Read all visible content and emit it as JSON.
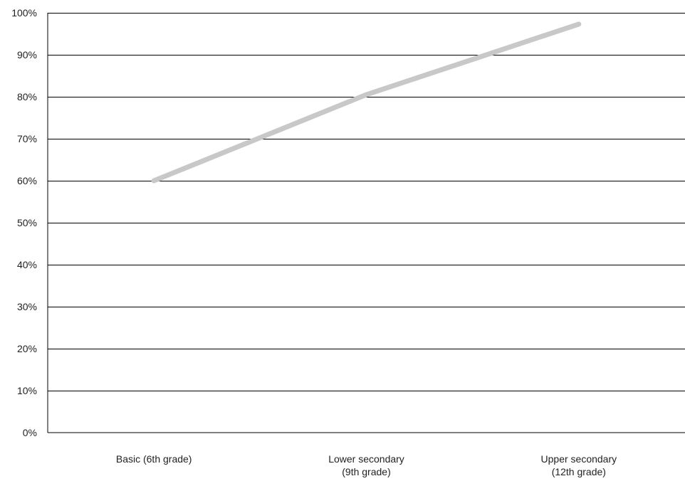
{
  "chart_data": {
    "type": "line",
    "categories": [
      [
        "Basic (6th grade)"
      ],
      [
        "Lower secondary",
        "(9th grade)"
      ],
      [
        "Upper secondary",
        "(12th grade)"
      ]
    ],
    "series": [
      {
        "values": [
          60,
          80.5,
          97.3
        ],
        "color": "#c8c8c8"
      }
    ],
    "ylim": [
      0,
      100
    ],
    "yticks": [
      0,
      10,
      20,
      30,
      40,
      50,
      60,
      70,
      80,
      90,
      100
    ],
    "ytick_labels": [
      "0%",
      "10%",
      "20%",
      "30%",
      "40%",
      "50%",
      "60%",
      "70%",
      "80%",
      "90%",
      "100%"
    ],
    "title": "",
    "xlabel": "",
    "ylabel": "",
    "grid": true,
    "legend": "none"
  }
}
